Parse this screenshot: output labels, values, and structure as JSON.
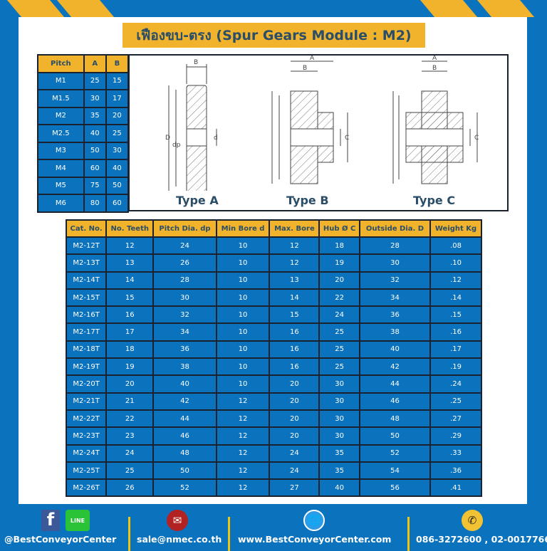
{
  "title": "เฟืองขบ-ตรง (Spur Gears Module : M2)",
  "size_table": {
    "headers": [
      "Pitch",
      "A",
      "B"
    ],
    "rows": [
      [
        "M1",
        "25",
        "15"
      ],
      [
        "M1.5",
        "30",
        "17"
      ],
      [
        "M2",
        "35",
        "20"
      ],
      [
        "M2.5",
        "40",
        "25"
      ],
      [
        "M3",
        "50",
        "30"
      ],
      [
        "M4",
        "60",
        "40"
      ],
      [
        "M5",
        "75",
        "50"
      ],
      [
        "M6",
        "80",
        "60"
      ]
    ]
  },
  "drawings": {
    "type_a": "Type A",
    "type_b": "Type B",
    "type_c": "Type C",
    "dim": {
      "a": "A",
      "b": "B",
      "d_outer": "D",
      "dp": "dp",
      "d": "d",
      "c": "C"
    }
  },
  "main_table": {
    "headers": [
      "Cat. No.",
      "No. Teeth",
      "Pitch Dia. dp",
      "Min Bore d",
      "Max. Bore",
      "Hub Ø C",
      "Outside Dia. D",
      "Weight Kg"
    ],
    "rows": [
      [
        "M2-12T",
        "12",
        "24",
        "10",
        "12",
        "18",
        "28",
        ".08"
      ],
      [
        "M2-13T",
        "13",
        "26",
        "10",
        "12",
        "19",
        "30",
        ".10"
      ],
      [
        "M2-14T",
        "14",
        "28",
        "10",
        "13",
        "20",
        "32",
        ".12"
      ],
      [
        "M2-15T",
        "15",
        "30",
        "10",
        "14",
        "22",
        "34",
        ".14"
      ],
      [
        "M2-16T",
        "16",
        "32",
        "10",
        "15",
        "24",
        "36",
        ".15"
      ],
      [
        "M2-17T",
        "17",
        "34",
        "10",
        "16",
        "25",
        "38",
        ".16"
      ],
      [
        "M2-18T",
        "18",
        "36",
        "10",
        "16",
        "25",
        "40",
        ".17"
      ],
      [
        "M2-19T",
        "19",
        "38",
        "10",
        "16",
        "25",
        "42",
        ".19"
      ],
      [
        "M2-20T",
        "20",
        "40",
        "10",
        "20",
        "30",
        "44",
        ".24"
      ],
      [
        "M2-21T",
        "21",
        "42",
        "12",
        "20",
        "30",
        "46",
        ".25"
      ],
      [
        "M2-22T",
        "22",
        "44",
        "12",
        "20",
        "30",
        "48",
        ".27"
      ],
      [
        "M2-23T",
        "23",
        "46",
        "12",
        "20",
        "30",
        "50",
        ".29"
      ],
      [
        "M2-24T",
        "24",
        "48",
        "12",
        "24",
        "35",
        "52",
        ".33"
      ],
      [
        "M2-25T",
        "25",
        "50",
        "12",
        "24",
        "35",
        "54",
        ".36"
      ],
      [
        "M2-26T",
        "26",
        "52",
        "12",
        "27",
        "40",
        "56",
        ".41"
      ]
    ]
  },
  "footer": {
    "social": "@BestConveyorCenter",
    "line_label": "LINE",
    "email": "sale@nmec.co.th",
    "website": "www.BestConveyorCenter.com",
    "phone": "086-3272600 , 02-0017766"
  }
}
